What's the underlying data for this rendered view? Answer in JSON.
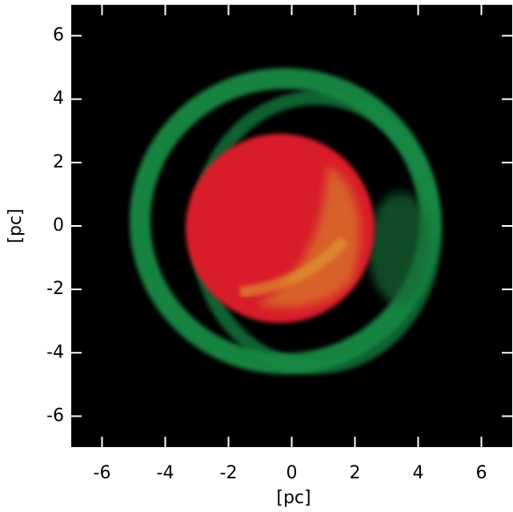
{
  "chart_data": {
    "type": "image",
    "xlabel": "[pc]",
    "ylabel": "[pc]",
    "xlim": [
      -7,
      7
    ],
    "ylim": [
      -7,
      7
    ],
    "xticks": [
      -6,
      -4,
      -2,
      0,
      2,
      4,
      6
    ],
    "yticks": [
      -6,
      -4,
      -2,
      0,
      2,
      4,
      6
    ]
  }
}
